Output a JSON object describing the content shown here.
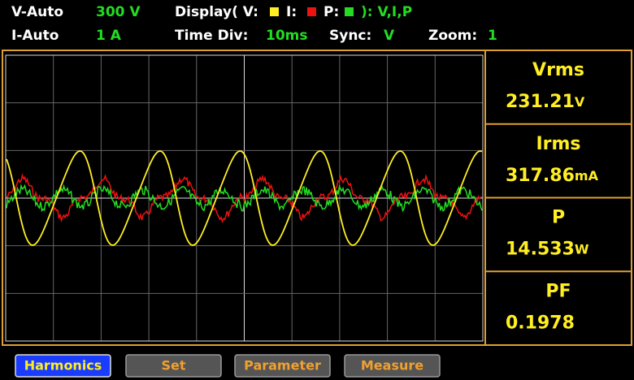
{
  "header": {
    "v_range_label": "V-Auto",
    "v_range": "300 V",
    "display_label": "Display( V:",
    "display_i": "I:",
    "display_p": "P:",
    "display_value": "): V,I,P",
    "i_range_label": "I-Auto",
    "i_range": "1 A",
    "time_div_label": "Time  Div:",
    "time_div": "10ms",
    "sync_label": "Sync:",
    "sync": "V",
    "zoom_label": "Zoom:",
    "zoom": "1"
  },
  "readings": [
    {
      "label": "Vrms",
      "value": "231.21",
      "unit": "V"
    },
    {
      "label": "Irms",
      "value": "317.86",
      "unit": "mA"
    },
    {
      "label": "P",
      "value": "14.533",
      "unit": "W"
    },
    {
      "label": "PF",
      "value": "0.1978",
      "unit": ""
    }
  ],
  "buttons": [
    "Harmonics",
    "Set",
    "Parameter",
    "Measure"
  ]
}
